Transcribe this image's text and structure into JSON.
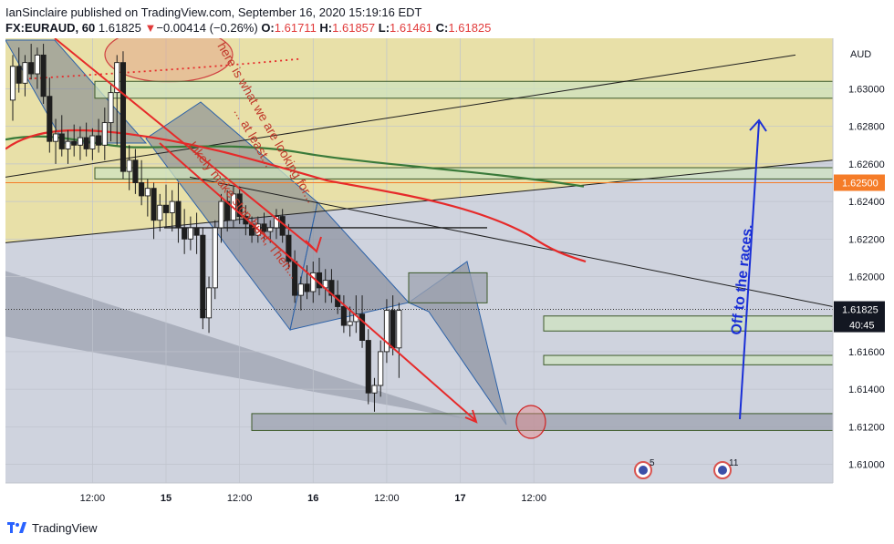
{
  "header": {
    "publish_line": "IanSinclaire published on TradingView.com, September 16, 2020 15:19:16 EDT",
    "symbol": "FX:EURAUD, 60",
    "last": "1.61825",
    "change_arrow": "▼",
    "change": "−0.00414 (−0.26%)",
    "o_label": "O:",
    "o_value": "1.61711",
    "h_label": "H:",
    "h_value": "1.61857",
    "l_label": "L:",
    "l_value": "1.61461",
    "c_label": "C:",
    "c_value": "1.61825"
  },
  "footer": {
    "brand": "TradingView",
    "logo_icon": "tradingview-logo-icon"
  },
  "colors": {
    "bull": "#ffffff",
    "bear": "#1e1e1e",
    "upper_zone": "#e8e0a8",
    "lower_zone": "#cfd3de",
    "red_line": "#e62a2a",
    "green_ma": "#3a7a3a",
    "blue_arrow": "#1a2fd6",
    "band_fill": "#cfe3c0",
    "band_border": "#3d5a2a",
    "price_badge": "#131722",
    "level_badge": "#f57c28"
  },
  "chart_data": {
    "type": "candlestick",
    "symbol": "EURAUD",
    "timeframe": "60",
    "ylim": [
      1.6092,
      1.6325
    ],
    "y_ticks": [
      "1.63000",
      "1.62800",
      "1.62600",
      "1.62400",
      "1.62200",
      "1.62000",
      "1.61600",
      "1.61400",
      "1.61200",
      "1.61000"
    ],
    "y_tick_values": [
      1.63,
      1.628,
      1.626,
      1.624,
      1.622,
      1.62,
      1.616,
      1.614,
      1.612,
      1.61
    ],
    "axis_unit": "AUD",
    "x_ticks": [
      "12:00",
      "15",
      "12:00",
      "16",
      "12:00",
      "17",
      "12:00"
    ],
    "x_tick_index": [
      13,
      25,
      37,
      49,
      61,
      73,
      85
    ],
    "candles": [
      {
        "o": 1.6294,
        "h": 1.6318,
        "l": 1.6283,
        "c": 1.6312
      },
      {
        "o": 1.6312,
        "h": 1.6322,
        "l": 1.6298,
        "c": 1.6303
      },
      {
        "o": 1.6303,
        "h": 1.6318,
        "l": 1.6296,
        "c": 1.6314
      },
      {
        "o": 1.6314,
        "h": 1.6324,
        "l": 1.6305,
        "c": 1.6308
      },
      {
        "o": 1.6308,
        "h": 1.6322,
        "l": 1.63,
        "c": 1.6318
      },
      {
        "o": 1.6318,
        "h": 1.6324,
        "l": 1.6292,
        "c": 1.6296
      },
      {
        "o": 1.6296,
        "h": 1.6306,
        "l": 1.6266,
        "c": 1.6272
      },
      {
        "o": 1.6272,
        "h": 1.6284,
        "l": 1.626,
        "c": 1.6276
      },
      {
        "o": 1.6276,
        "h": 1.6286,
        "l": 1.6264,
        "c": 1.6268
      },
      {
        "o": 1.6268,
        "h": 1.6278,
        "l": 1.626,
        "c": 1.6272
      },
      {
        "o": 1.6272,
        "h": 1.6281,
        "l": 1.6264,
        "c": 1.627
      },
      {
        "o": 1.627,
        "h": 1.628,
        "l": 1.6262,
        "c": 1.6274
      },
      {
        "o": 1.6274,
        "h": 1.6282,
        "l": 1.6264,
        "c": 1.6268
      },
      {
        "o": 1.6268,
        "h": 1.6279,
        "l": 1.6262,
        "c": 1.6275
      },
      {
        "o": 1.6275,
        "h": 1.6284,
        "l": 1.6266,
        "c": 1.627
      },
      {
        "o": 1.627,
        "h": 1.629,
        "l": 1.6262,
        "c": 1.6282
      },
      {
        "o": 1.6282,
        "h": 1.6302,
        "l": 1.6272,
        "c": 1.6298
      },
      {
        "o": 1.6298,
        "h": 1.6318,
        "l": 1.627,
        "c": 1.6314
      },
      {
        "o": 1.6314,
        "h": 1.632,
        "l": 1.6252,
        "c": 1.6256
      },
      {
        "o": 1.6256,
        "h": 1.627,
        "l": 1.6246,
        "c": 1.6262
      },
      {
        "o": 1.6262,
        "h": 1.6268,
        "l": 1.6244,
        "c": 1.625
      },
      {
        "o": 1.625,
        "h": 1.6262,
        "l": 1.6238,
        "c": 1.6243
      },
      {
        "o": 1.6243,
        "h": 1.6252,
        "l": 1.6232,
        "c": 1.6247
      },
      {
        "o": 1.6247,
        "h": 1.625,
        "l": 1.622,
        "c": 1.623
      },
      {
        "o": 1.623,
        "h": 1.6244,
        "l": 1.6224,
        "c": 1.6238
      },
      {
        "o": 1.6238,
        "h": 1.6249,
        "l": 1.6226,
        "c": 1.6234
      },
      {
        "o": 1.6234,
        "h": 1.6246,
        "l": 1.6224,
        "c": 1.624
      },
      {
        "o": 1.624,
        "h": 1.625,
        "l": 1.6218,
        "c": 1.6226
      },
      {
        "o": 1.6226,
        "h": 1.6236,
        "l": 1.6212,
        "c": 1.622
      },
      {
        "o": 1.622,
        "h": 1.6232,
        "l": 1.6214,
        "c": 1.6226
      },
      {
        "o": 1.6226,
        "h": 1.6234,
        "l": 1.6212,
        "c": 1.6222
      },
      {
        "o": 1.6222,
        "h": 1.6226,
        "l": 1.6172,
        "c": 1.6178
      },
      {
        "o": 1.6178,
        "h": 1.62,
        "l": 1.617,
        "c": 1.6194
      },
      {
        "o": 1.6194,
        "h": 1.623,
        "l": 1.6188,
        "c": 1.6226
      },
      {
        "o": 1.6226,
        "h": 1.6244,
        "l": 1.6218,
        "c": 1.624
      },
      {
        "o": 1.624,
        "h": 1.6246,
        "l": 1.6224,
        "c": 1.623
      },
      {
        "o": 1.623,
        "h": 1.6248,
        "l": 1.6226,
        "c": 1.6244
      },
      {
        "o": 1.6244,
        "h": 1.6248,
        "l": 1.6228,
        "c": 1.6232
      },
      {
        "o": 1.6232,
        "h": 1.6238,
        "l": 1.6222,
        "c": 1.6228
      },
      {
        "o": 1.6228,
        "h": 1.6232,
        "l": 1.6218,
        "c": 1.6222
      },
      {
        "o": 1.6222,
        "h": 1.6232,
        "l": 1.6218,
        "c": 1.6228
      },
      {
        "o": 1.6228,
        "h": 1.6234,
        "l": 1.622,
        "c": 1.6224
      },
      {
        "o": 1.6224,
        "h": 1.623,
        "l": 1.6218,
        "c": 1.6226
      },
      {
        "o": 1.6226,
        "h": 1.6236,
        "l": 1.622,
        "c": 1.6232
      },
      {
        "o": 1.6232,
        "h": 1.6236,
        "l": 1.6218,
        "c": 1.6222
      },
      {
        "o": 1.6222,
        "h": 1.6228,
        "l": 1.6204,
        "c": 1.6208
      },
      {
        "o": 1.6208,
        "h": 1.6214,
        "l": 1.6186,
        "c": 1.619
      },
      {
        "o": 1.619,
        "h": 1.62,
        "l": 1.6182,
        "c": 1.6196
      },
      {
        "o": 1.6196,
        "h": 1.6206,
        "l": 1.6188,
        "c": 1.6192
      },
      {
        "o": 1.6192,
        "h": 1.6208,
        "l": 1.6186,
        "c": 1.6202
      },
      {
        "o": 1.6202,
        "h": 1.621,
        "l": 1.619,
        "c": 1.6194
      },
      {
        "o": 1.6194,
        "h": 1.6204,
        "l": 1.6186,
        "c": 1.6198
      },
      {
        "o": 1.6198,
        "h": 1.6204,
        "l": 1.6186,
        "c": 1.619
      },
      {
        "o": 1.619,
        "h": 1.6198,
        "l": 1.618,
        "c": 1.6184
      },
      {
        "o": 1.6184,
        "h": 1.619,
        "l": 1.617,
        "c": 1.6174
      },
      {
        "o": 1.6174,
        "h": 1.6184,
        "l": 1.6168,
        "c": 1.6176
      },
      {
        "o": 1.6176,
        "h": 1.619,
        "l": 1.617,
        "c": 1.618
      },
      {
        "o": 1.618,
        "h": 1.619,
        "l": 1.6162,
        "c": 1.6166
      },
      {
        "o": 1.6166,
        "h": 1.6172,
        "l": 1.6132,
        "c": 1.6138
      },
      {
        "o": 1.6138,
        "h": 1.6146,
        "l": 1.6128,
        "c": 1.6142
      },
      {
        "o": 1.6142,
        "h": 1.6166,
        "l": 1.6136,
        "c": 1.616
      },
      {
        "o": 1.616,
        "h": 1.6188,
        "l": 1.6154,
        "c": 1.6182
      },
      {
        "o": 1.6182,
        "h": 1.619,
        "l": 1.6158,
        "c": 1.6162
      },
      {
        "o": 1.6162,
        "h": 1.6186,
        "l": 1.6146,
        "c": 1.6182
      }
    ],
    "horizontal_levels": [
      {
        "value": 1.625,
        "label": "1.62500"
      }
    ],
    "current_price": {
      "value": 1.61825,
      "label": "1.61825",
      "countdown": "40:45"
    },
    "annotations": [
      "here is what we are looking for...",
      "... at least...",
      "Likely make stop hunt, Then...",
      "Off to the races."
    ],
    "event_badges": [
      "5",
      "11"
    ]
  }
}
